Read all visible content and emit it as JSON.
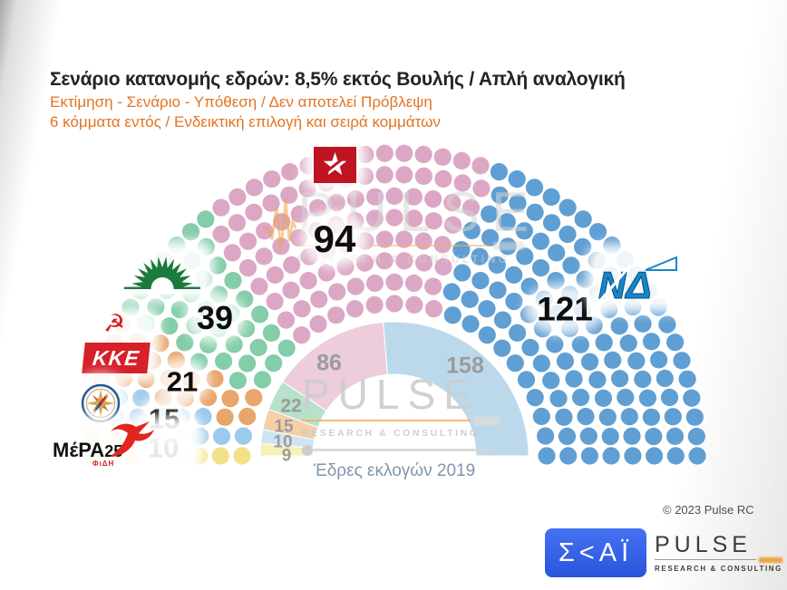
{
  "header": {
    "title": "Σενάριο κατανομής εδρών: 8,5% εκτός Βουλής / Απλή αναλογική",
    "subtitle_line1": "Εκτίμηση - Σενάριο - Υπόθεση / Δεν αποτελεί Πρόβλεψη",
    "subtitle_line2": "6 κόμματα εντός / Ενδεικτική επιλογή και σειρά κομμάτων"
  },
  "chart_data": {
    "type": "parliament",
    "title": "Σενάριο κατανομής εδρών: 8,5% εκτός Βουλής / Απλή αναλογική",
    "total_seats": 300,
    "hemicycle_rows": 8,
    "seat_order": "left-to-right",
    "parties": [
      {
        "id": "mera25",
        "name": "ΜέΡΑ25",
        "scenario_seats": 10,
        "seats_2019": 9,
        "dot_color": "#f1e287",
        "ring_color": "#f8efb9"
      },
      {
        "id": "elliniki-lysi",
        "name": "Ελληνική Λύση",
        "scenario_seats": 15,
        "seats_2019": 10,
        "dot_color": "#9ccaea",
        "ring_color": "#cfe4f3"
      },
      {
        "id": "kke",
        "name": "ΚΚΕ",
        "scenario_seats": 21,
        "seats_2019": 15,
        "dot_color": "#e8a56c",
        "ring_color": "#f4cfa7"
      },
      {
        "id": "pasok",
        "name": "ΠΑΣΟΚ",
        "scenario_seats": 39,
        "seats_2019": 22,
        "dot_color": "#83cda9",
        "ring_color": "#b7e1cb"
      },
      {
        "id": "syriza",
        "name": "ΣΥΡΙΖΑ",
        "scenario_seats": 94,
        "seats_2019": 86,
        "dot_color": "#dca7c5",
        "ring_color": "#edccdc"
      },
      {
        "id": "nd",
        "name": "ΝΔ",
        "scenario_seats": 121,
        "seats_2019": 158,
        "dot_color": "#5f9fd3",
        "ring_color": "#bcd9ec"
      }
    ],
    "ring_caption": "Έδρες εκλογών 2019"
  },
  "watermark": {
    "brand": "PULSE",
    "tagline": "RESEARCH & CONSULTING"
  },
  "party_logos": {
    "kke_text": "ΚΚΕ",
    "nd_text": "ΝΔ",
    "mera25_text": "ΜέΡΑ",
    "mera25_number": "25",
    "mera25_subtext": "ΦιΔΗ"
  },
  "footer": {
    "copyright": "© 2023 Pulse RC",
    "skai_text": "Σ<ΑΪ",
    "pulse_brand": "PULSE",
    "pulse_tagline": "RESEARCH & CONSULTING"
  }
}
